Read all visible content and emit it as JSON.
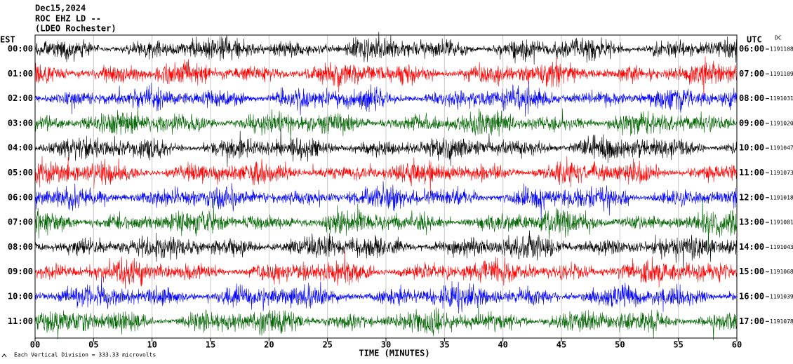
{
  "header": {
    "date": "Dec15,2024",
    "station": "ROC EHZ LD --",
    "location": "(LDEO Rochester)",
    "left_zone": "EST",
    "right_zone": "UTC",
    "mode": "DC"
  },
  "rows": [
    {
      "est": "00:00",
      "utc": "06:00",
      "value": 1191108,
      "color": "#000000"
    },
    {
      "est": "01:00",
      "utc": "07:00",
      "value": 1191109,
      "color": "#ff0000"
    },
    {
      "est": "02:00",
      "utc": "08:00",
      "value": 1191031,
      "color": "#0000ff"
    },
    {
      "est": "03:00",
      "utc": "09:00",
      "value": 1191020,
      "color": "#006400"
    },
    {
      "est": "04:00",
      "utc": "10:00",
      "value": 1191047,
      "color": "#000000"
    },
    {
      "est": "05:00",
      "utc": "11:00",
      "value": 1191073,
      "color": "#ff0000"
    },
    {
      "est": "06:00",
      "utc": "12:00",
      "value": 1191018,
      "color": "#0000ff"
    },
    {
      "est": "07:00",
      "utc": "13:00",
      "value": 1191081,
      "color": "#006400"
    },
    {
      "est": "08:00",
      "utc": "14:00",
      "value": 1191043,
      "color": "#000000"
    },
    {
      "est": "09:00",
      "utc": "15:00",
      "value": 1191068,
      "color": "#ff0000"
    },
    {
      "est": "10:00",
      "utc": "16:00",
      "value": 1191039,
      "color": "#0000ff"
    },
    {
      "est": "11:00",
      "utc": "17:00",
      "value": 1191078,
      "color": "#006400"
    }
  ],
  "x_axis": {
    "ticks": [
      "00",
      "05",
      "10",
      "15",
      "20",
      "25",
      "30",
      "35",
      "40",
      "45",
      "50",
      "55",
      "60"
    ],
    "label": "TIME (MINUTES)"
  },
  "footer": "Each Vertical Division =  333.33 microvolts"
}
